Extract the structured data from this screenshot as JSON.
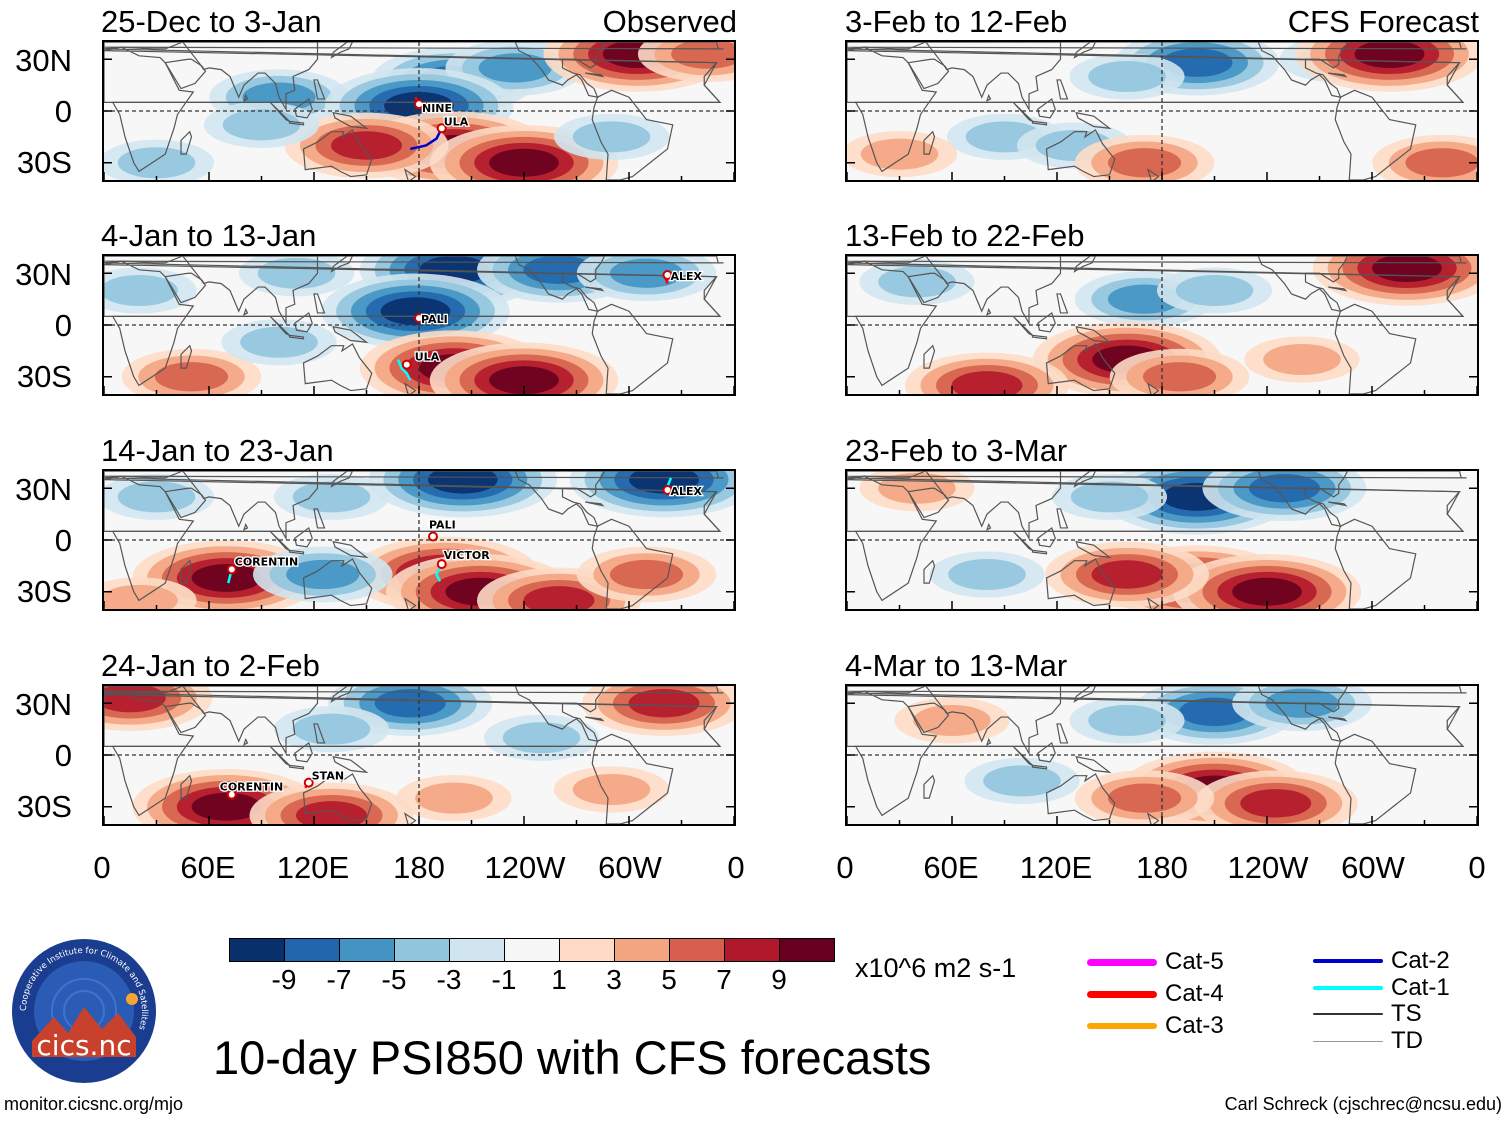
{
  "title": "10-day PSI850 with CFS forecasts",
  "observed_tag": "Observed",
  "forecast_tag": "CFS Forecast",
  "panels": [
    {
      "id": "obs1",
      "title": "25-Dec to 3-Jan",
      "tag": "Observed",
      "storms": [
        {
          "name": "NINE"
        },
        {
          "name": "ULA"
        }
      ],
      "anomalies": [
        {
          "lon": 100,
          "lat": 8,
          "value": -5
        },
        {
          "lon": 200,
          "lat": 18,
          "value": -7
        },
        {
          "lon": 235,
          "lat": 25,
          "value": -5
        },
        {
          "lon": 180,
          "lat": 3,
          "value": -9
        },
        {
          "lon": 305,
          "lat": 33,
          "value": 9
        },
        {
          "lon": 345,
          "lat": 33,
          "value": 5
        },
        {
          "lon": 200,
          "lat": -22,
          "value": 9
        },
        {
          "lon": 240,
          "lat": -30,
          "value": 9
        },
        {
          "lon": 150,
          "lat": -20,
          "value": 7
        },
        {
          "lon": 90,
          "lat": -8,
          "value": -3
        },
        {
          "lon": 30,
          "lat": -30,
          "value": -3
        },
        {
          "lon": 290,
          "lat": -15,
          "value": -3
        }
      ]
    },
    {
      "id": "obs2",
      "title": "4-Jan to 13-Jan",
      "tag": "",
      "storms": [
        {
          "name": "ALEX"
        },
        {
          "name": "PALI"
        },
        {
          "name": "ULA"
        }
      ],
      "anomalies": [
        {
          "lon": 200,
          "lat": 32,
          "value": -9
        },
        {
          "lon": 260,
          "lat": 32,
          "value": -7
        },
        {
          "lon": 310,
          "lat": 30,
          "value": -5
        },
        {
          "lon": 178,
          "lat": 8,
          "value": -9
        },
        {
          "lon": 110,
          "lat": 30,
          "value": -3
        },
        {
          "lon": 200,
          "lat": -25,
          "value": 9
        },
        {
          "lon": 240,
          "lat": -32,
          "value": 9
        },
        {
          "lon": 50,
          "lat": -30,
          "value": 5
        },
        {
          "lon": 100,
          "lat": -10,
          "value": -3
        },
        {
          "lon": 20,
          "lat": 20,
          "value": -3
        }
      ]
    },
    {
      "id": "obs3",
      "title": "14-Jan to 23-Jan",
      "tag": "",
      "storms": [
        {
          "name": "ALEX"
        },
        {
          "name": "PALI"
        },
        {
          "name": "CORENTIN"
        },
        {
          "name": "VICTOR"
        }
      ],
      "anomalies": [
        {
          "lon": 205,
          "lat": 35,
          "value": -9
        },
        {
          "lon": 320,
          "lat": 35,
          "value": -9
        },
        {
          "lon": 130,
          "lat": 25,
          "value": -3
        },
        {
          "lon": 30,
          "lat": 25,
          "value": -3
        },
        {
          "lon": 70,
          "lat": -22,
          "value": 9
        },
        {
          "lon": 195,
          "lat": -20,
          "value": 9
        },
        {
          "lon": 215,
          "lat": -30,
          "value": 9
        },
        {
          "lon": 260,
          "lat": -35,
          "value": 7
        },
        {
          "lon": 310,
          "lat": -20,
          "value": 5
        },
        {
          "lon": 125,
          "lat": -20,
          "value": -5
        },
        {
          "lon": 20,
          "lat": -35,
          "value": 3
        }
      ]
    },
    {
      "id": "obs4",
      "title": "24-Jan to 2-Feb",
      "tag": "",
      "storms": [
        {
          "name": "STAN"
        },
        {
          "name": "CORENTIN"
        }
      ],
      "anomalies": [
        {
          "lon": 15,
          "lat": 33,
          "value": 7
        },
        {
          "lon": 175,
          "lat": 30,
          "value": -7
        },
        {
          "lon": 130,
          "lat": 15,
          "value": -3
        },
        {
          "lon": 320,
          "lat": 30,
          "value": 7
        },
        {
          "lon": 70,
          "lat": -30,
          "value": 9
        },
        {
          "lon": 130,
          "lat": -35,
          "value": 7
        },
        {
          "lon": 200,
          "lat": -25,
          "value": 3
        },
        {
          "lon": 290,
          "lat": -20,
          "value": 3
        },
        {
          "lon": 250,
          "lat": 10,
          "value": -3
        }
      ]
    },
    {
      "id": "fc1",
      "title": "3-Feb to 12-Feb",
      "tag": "CFS Forecast",
      "storms": [],
      "anomalies": [
        {
          "lon": 200,
          "lat": 28,
          "value": -7
        },
        {
          "lon": 160,
          "lat": 20,
          "value": -3
        },
        {
          "lon": 280,
          "lat": 30,
          "value": -3
        },
        {
          "lon": 310,
          "lat": 33,
          "value": 9
        },
        {
          "lon": 90,
          "lat": -15,
          "value": -3
        },
        {
          "lon": 130,
          "lat": -20,
          "value": -3
        },
        {
          "lon": 170,
          "lat": -30,
          "value": 5
        },
        {
          "lon": 340,
          "lat": -30,
          "value": 5
        },
        {
          "lon": 30,
          "lat": -25,
          "value": 3
        }
      ]
    },
    {
      "id": "fc2",
      "title": "13-Feb to 22-Feb",
      "tag": "",
      "storms": [],
      "anomalies": [
        {
          "lon": 170,
          "lat": 15,
          "value": -5
        },
        {
          "lon": 210,
          "lat": 20,
          "value": -3
        },
        {
          "lon": 320,
          "lat": 33,
          "value": 9
        },
        {
          "lon": 160,
          "lat": -20,
          "value": 9
        },
        {
          "lon": 80,
          "lat": -35,
          "value": 7
        },
        {
          "lon": 190,
          "lat": -30,
          "value": 5
        },
        {
          "lon": 260,
          "lat": -20,
          "value": 3
        },
        {
          "lon": 40,
          "lat": 25,
          "value": -3
        }
      ]
    },
    {
      "id": "fc3",
      "title": "23-Feb to 3-Mar",
      "tag": "",
      "storms": [],
      "anomalies": [
        {
          "lon": 200,
          "lat": 25,
          "value": -9
        },
        {
          "lon": 250,
          "lat": 30,
          "value": -7
        },
        {
          "lon": 150,
          "lat": 25,
          "value": -3
        },
        {
          "lon": 200,
          "lat": -25,
          "value": 9
        },
        {
          "lon": 240,
          "lat": -30,
          "value": 9
        },
        {
          "lon": 160,
          "lat": -20,
          "value": 7
        },
        {
          "lon": 40,
          "lat": 30,
          "value": 3
        },
        {
          "lon": 80,
          "lat": -20,
          "value": -3
        }
      ]
    },
    {
      "id": "fc4",
      "title": "4-Mar to 13-Mar",
      "tag": "",
      "storms": [],
      "anomalies": [
        {
          "lon": 210,
          "lat": 25,
          "value": -7
        },
        {
          "lon": 260,
          "lat": 30,
          "value": -5
        },
        {
          "lon": 160,
          "lat": 20,
          "value": -3
        },
        {
          "lon": 210,
          "lat": -20,
          "value": 9
        },
        {
          "lon": 245,
          "lat": -28,
          "value": 7
        },
        {
          "lon": 170,
          "lat": -25,
          "value": 5
        },
        {
          "lon": 60,
          "lat": 20,
          "value": 3
        },
        {
          "lon": 100,
          "lat": -15,
          "value": -3
        }
      ]
    }
  ],
  "lat_labels": [
    "30N",
    "0",
    "30S"
  ],
  "lon_labels": [
    "0",
    "60E",
    "120E",
    "180",
    "120W",
    "60W",
    "0"
  ],
  "colorbar": {
    "colors": [
      "#08306b",
      "#2166ac",
      "#4393c3",
      "#92c5de",
      "#d1e5f0",
      "#f7f7f7",
      "#fddbc7",
      "#f4a582",
      "#d6604d",
      "#b2182b",
      "#67001f"
    ],
    "labels": [
      "-9",
      "-7",
      "-5",
      "-3",
      "-1",
      "1",
      "3",
      "5",
      "7",
      "9"
    ],
    "units": "x10^6 m2 s-1"
  },
  "legend": [
    {
      "label": "Cat-5",
      "color": "#ff00ff"
    },
    {
      "label": "Cat-4",
      "color": "#ff0000"
    },
    {
      "label": "Cat-3",
      "color": "#ffa500"
    },
    {
      "label": "Cat-2",
      "color": "#0000cd"
    },
    {
      "label": "Cat-1",
      "color": "#00ffff"
    },
    {
      "label": "TS",
      "color": "#333333"
    },
    {
      "label": "TD",
      "color": "#999999"
    }
  ],
  "logo_text": "cics.nc",
  "logo_ring_text": "Cooperative Institute for Climate and Satellites",
  "footer_left": "monitor.cicsnc.org/mjo",
  "footer_right": "Carl Schreck (cjschrec@ncsu.edu)"
}
